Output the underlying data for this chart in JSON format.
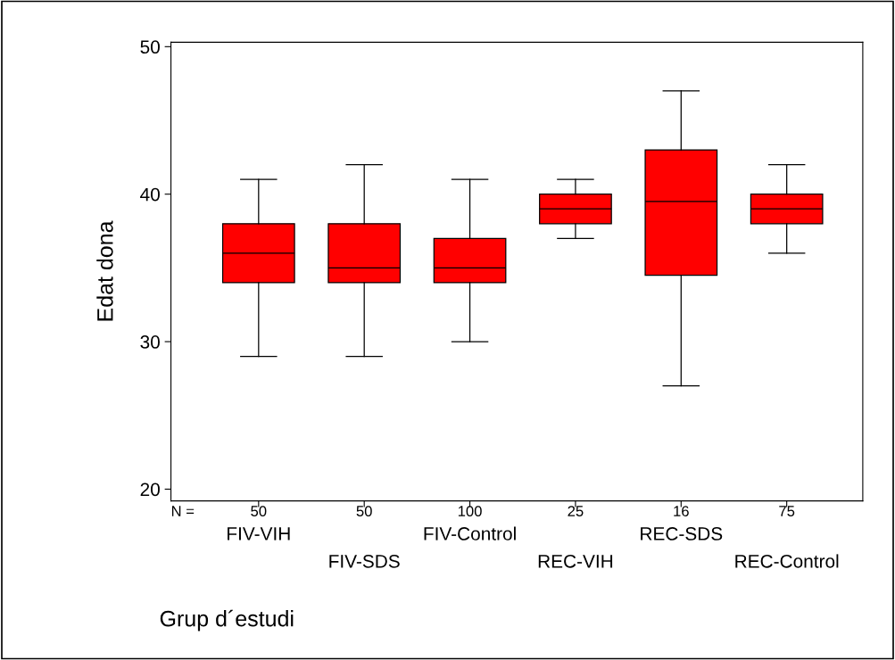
{
  "chart_data": {
    "type": "box",
    "xlabel": "Grup d´estudi",
    "ylabel": "Edat dona",
    "categories": [
      "FIV-VIH",
      "FIV-SDS",
      "FIV-Control",
      "REC-VIH",
      "REC-SDS",
      "REC-Control"
    ],
    "color": "#ff0000",
    "boxes": [
      {
        "low": 29,
        "q1": 34,
        "median": 36,
        "q3": 38,
        "high": 41
      },
      {
        "low": 29,
        "q1": 34,
        "median": 35,
        "q3": 38,
        "high": 42
      },
      {
        "low": 30,
        "q1": 34,
        "median": 35,
        "q3": 37,
        "high": 41
      },
      {
        "low": 37,
        "q1": 38,
        "median": 39,
        "q3": 40,
        "high": 41
      },
      {
        "low": 27,
        "q1": 34.5,
        "median": 39.5,
        "q3": 43,
        "high": 47
      },
      {
        "low": 36,
        "q1": 38,
        "median": 39,
        "q3": 40,
        "high": 42
      }
    ],
    "ylim": [
      19.2,
      50.3
    ],
    "yticks": [
      20,
      30,
      40,
      50
    ],
    "grid": false,
    "annotations": [
      "N =",
      "50",
      "50",
      "100",
      "25",
      "16",
      "75"
    ]
  }
}
